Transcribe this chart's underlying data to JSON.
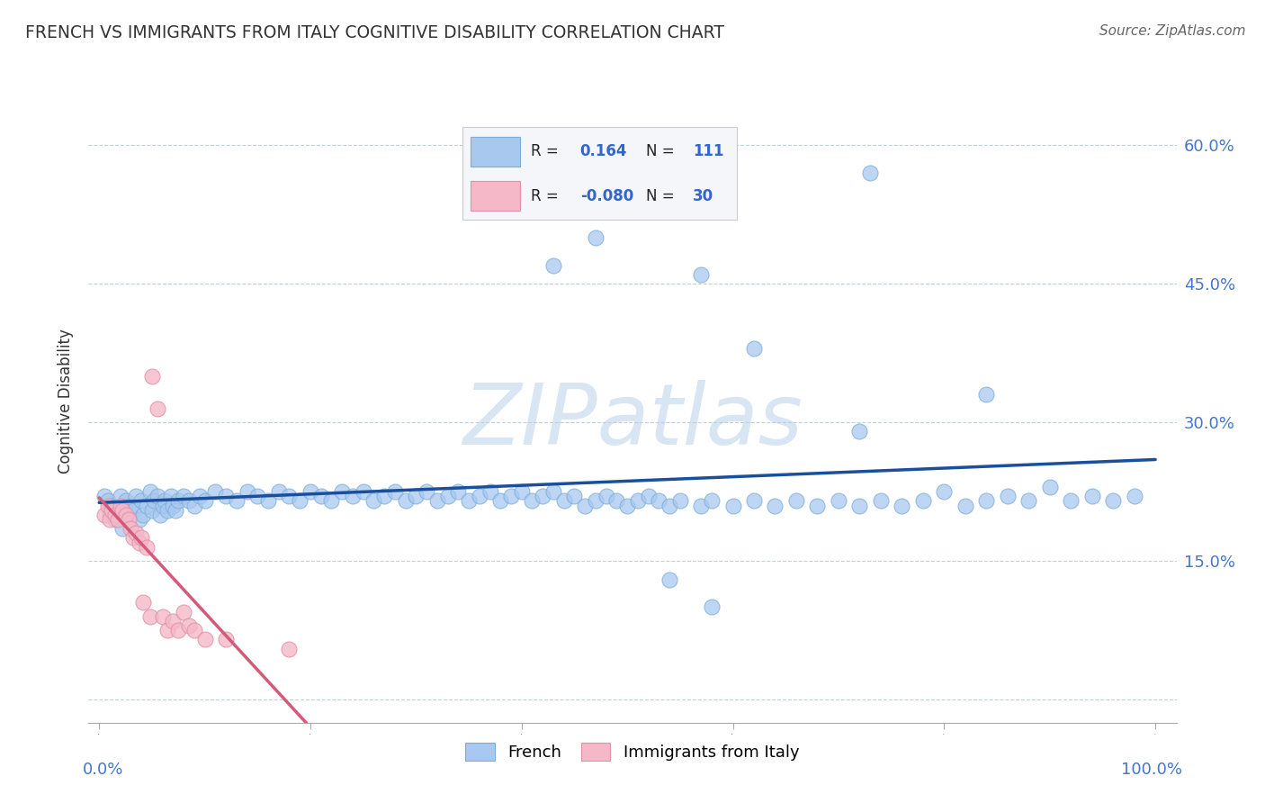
{
  "title": "FRENCH VS IMMIGRANTS FROM ITALY COGNITIVE DISABILITY CORRELATION CHART",
  "source": "Source: ZipAtlas.com",
  "ylabel": "Cognitive Disability",
  "ytick_positions": [
    0.0,
    0.15,
    0.3,
    0.45,
    0.6
  ],
  "ytick_labels_right": [
    "",
    "15.0%",
    "30.0%",
    "45.0%",
    "60.0%"
  ],
  "xlim": [
    -0.01,
    1.02
  ],
  "ylim": [
    -0.025,
    0.67
  ],
  "french_fill_color": "#a8c8f0",
  "french_edge_color": "#7aaed6",
  "french_line_color": "#1a4f9c",
  "immigrants_fill_color": "#f4b8c8",
  "immigrants_edge_color": "#e090a8",
  "immigrants_line_color": "#d45a7a",
  "background_color": "#ffffff",
  "grid_color": "#c0cfe0",
  "watermark": "ZIPatlas",
  "legend_R_french": "0.164",
  "legend_N_french": "111",
  "legend_R_immigrants": "-0.080",
  "legend_N_immigrants": "30",
  "french_x": [
    0.005,
    0.008,
    0.01,
    0.012,
    0.015,
    0.018,
    0.02,
    0.022,
    0.025,
    0.028,
    0.03,
    0.032,
    0.035,
    0.038,
    0.04,
    0.042,
    0.045,
    0.048,
    0.05,
    0.052,
    0.055,
    0.058,
    0.06,
    0.062,
    0.065,
    0.068,
    0.07,
    0.072,
    0.075,
    0.08,
    0.085,
    0.09,
    0.095,
    0.1,
    0.11,
    0.12,
    0.13,
    0.14,
    0.15,
    0.16,
    0.17,
    0.18,
    0.19,
    0.2,
    0.21,
    0.22,
    0.23,
    0.24,
    0.25,
    0.26,
    0.27,
    0.28,
    0.29,
    0.3,
    0.31,
    0.32,
    0.33,
    0.34,
    0.35,
    0.36,
    0.37,
    0.38,
    0.39,
    0.4,
    0.41,
    0.42,
    0.43,
    0.44,
    0.45,
    0.46,
    0.47,
    0.48,
    0.49,
    0.5,
    0.51,
    0.52,
    0.53,
    0.54,
    0.55,
    0.57,
    0.58,
    0.6,
    0.62,
    0.64,
    0.66,
    0.68,
    0.7,
    0.72,
    0.74,
    0.76,
    0.78,
    0.8,
    0.82,
    0.84,
    0.86,
    0.88,
    0.9,
    0.92,
    0.94,
    0.96,
    0.98,
    0.43,
    0.47,
    0.5,
    0.57,
    0.62,
    0.73,
    0.84,
    0.54,
    0.58,
    0.72
  ],
  "french_y": [
    0.22,
    0.215,
    0.2,
    0.21,
    0.195,
    0.205,
    0.22,
    0.185,
    0.215,
    0.2,
    0.21,
    0.205,
    0.22,
    0.195,
    0.215,
    0.2,
    0.21,
    0.225,
    0.205,
    0.215,
    0.22,
    0.2,
    0.21,
    0.215,
    0.205,
    0.22,
    0.21,
    0.205,
    0.215,
    0.22,
    0.215,
    0.21,
    0.22,
    0.215,
    0.225,
    0.22,
    0.215,
    0.225,
    0.22,
    0.215,
    0.225,
    0.22,
    0.215,
    0.225,
    0.22,
    0.215,
    0.225,
    0.22,
    0.225,
    0.215,
    0.22,
    0.225,
    0.215,
    0.22,
    0.225,
    0.215,
    0.22,
    0.225,
    0.215,
    0.22,
    0.225,
    0.215,
    0.22,
    0.225,
    0.215,
    0.22,
    0.225,
    0.215,
    0.22,
    0.21,
    0.215,
    0.22,
    0.215,
    0.21,
    0.215,
    0.22,
    0.215,
    0.21,
    0.215,
    0.21,
    0.215,
    0.21,
    0.215,
    0.21,
    0.215,
    0.21,
    0.215,
    0.21,
    0.215,
    0.21,
    0.215,
    0.225,
    0.21,
    0.215,
    0.22,
    0.215,
    0.23,
    0.215,
    0.22,
    0.215,
    0.22,
    0.47,
    0.5,
    0.53,
    0.46,
    0.38,
    0.57,
    0.33,
    0.13,
    0.1,
    0.29
  ],
  "immigrants_x": [
    0.005,
    0.008,
    0.01,
    0.012,
    0.015,
    0.018,
    0.02,
    0.022,
    0.025,
    0.028,
    0.03,
    0.032,
    0.035,
    0.038,
    0.04,
    0.042,
    0.045,
    0.048,
    0.05,
    0.055,
    0.06,
    0.065,
    0.07,
    0.075,
    0.08,
    0.085,
    0.09,
    0.1,
    0.12,
    0.18
  ],
  "immigrants_y": [
    0.2,
    0.21,
    0.195,
    0.205,
    0.2,
    0.195,
    0.21,
    0.205,
    0.2,
    0.195,
    0.185,
    0.175,
    0.18,
    0.17,
    0.175,
    0.105,
    0.165,
    0.09,
    0.35,
    0.315,
    0.09,
    0.075,
    0.085,
    0.075,
    0.095,
    0.08,
    0.075,
    0.065,
    0.065,
    0.055
  ]
}
